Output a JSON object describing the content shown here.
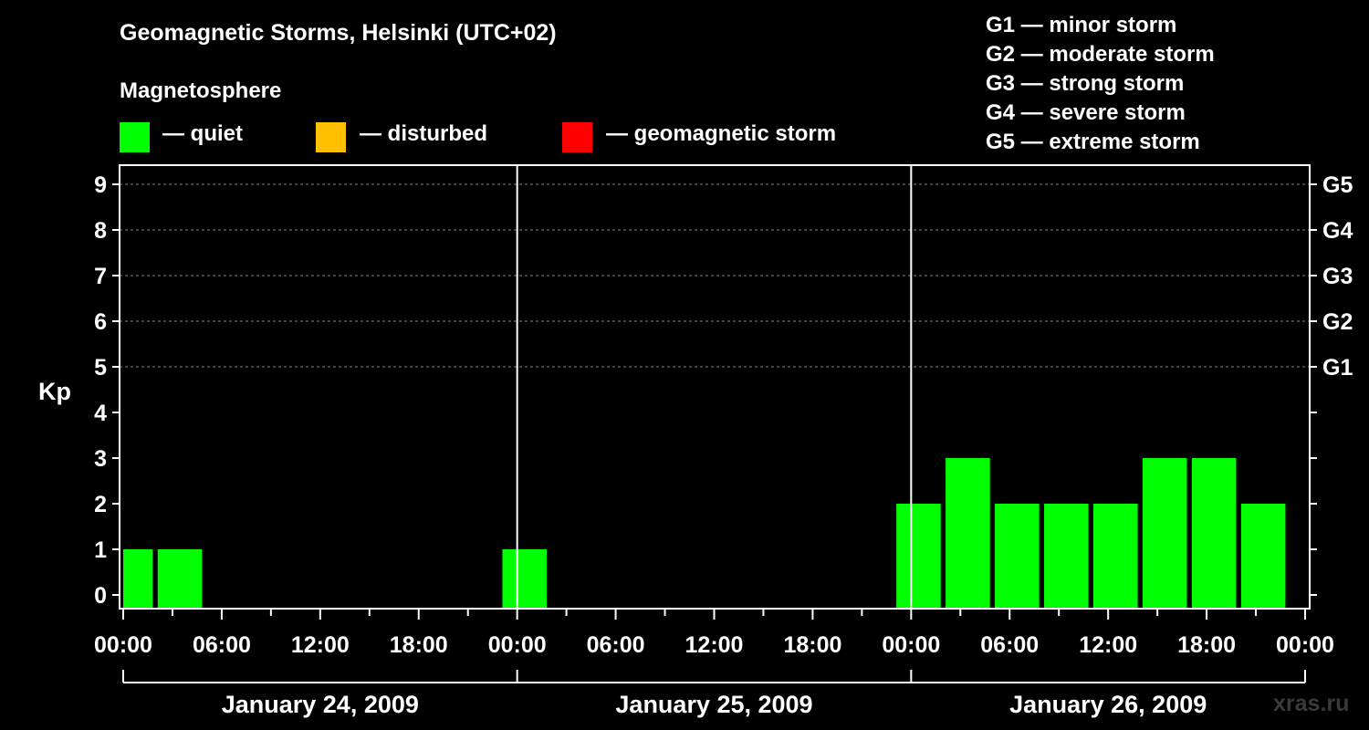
{
  "chart_data": {
    "type": "bar",
    "title": "Geomagnetic Storms, Helsinki (UTC+02)",
    "ylabel": "Kp",
    "xlabel": "",
    "ylim": [
      0,
      9
    ],
    "yticks": [
      "0",
      "1",
      "2",
      "3",
      "4",
      "5",
      "6",
      "7",
      "8",
      "9"
    ],
    "right_ticks": [
      {
        "kp": 5,
        "label": "G1"
      },
      {
        "kp": 6,
        "label": "G2"
      },
      {
        "kp": 7,
        "label": "G3"
      },
      {
        "kp": 8,
        "label": "G4"
      },
      {
        "kp": 9,
        "label": "G5"
      }
    ],
    "x_range_hours": [
      0,
      72
    ],
    "xtick_labels": [
      "00:00",
      "06:00",
      "12:00",
      "18:00",
      "00:00",
      "06:00",
      "12:00",
      "18:00",
      "00:00",
      "06:00",
      "12:00",
      "18:00",
      "00:00"
    ],
    "days": [
      "January 24, 2009",
      "January 25, 2009",
      "January 26, 2009"
    ],
    "legend": {
      "heading": "Magnetosphere",
      "entries": [
        {
          "label": "— quiet",
          "color": "#00ff00"
        },
        {
          "label": "— disturbed",
          "color": "#ffc000"
        },
        {
          "label": "— geomagnetic storm",
          "color": "#ff0000"
        }
      ]
    },
    "storm_scale": [
      "G1 — minor storm",
      "G2 — moderate storm",
      "G3 — strong storm",
      "G4 — severe storm",
      "G5 — extreme storm"
    ],
    "bars": [
      {
        "start_h": 0,
        "end_h": 1.8,
        "kp": 1
      },
      {
        "start_h": 2.1,
        "end_h": 4.8,
        "kp": 1
      },
      {
        "start_h": 23.1,
        "end_h": 25.8,
        "kp": 1
      },
      {
        "start_h": 47.1,
        "end_h": 49.8,
        "kp": 2
      },
      {
        "start_h": 50.1,
        "end_h": 52.8,
        "kp": 3
      },
      {
        "start_h": 53.1,
        "end_h": 55.8,
        "kp": 2
      },
      {
        "start_h": 56.1,
        "end_h": 58.8,
        "kp": 2
      },
      {
        "start_h": 59.1,
        "end_h": 61.8,
        "kp": 2
      },
      {
        "start_h": 62.1,
        "end_h": 64.8,
        "kp": 3
      },
      {
        "start_h": 65.1,
        "end_h": 67.8,
        "kp": 3
      },
      {
        "start_h": 68.1,
        "end_h": 70.8,
        "kp": 2
      }
    ],
    "colors": {
      "quiet": "#00ff00",
      "disturbed": "#ffc000",
      "storm": "#ff0000",
      "grid": "#808080",
      "axis": "#ffffff"
    }
  },
  "watermark": "xras.ru"
}
